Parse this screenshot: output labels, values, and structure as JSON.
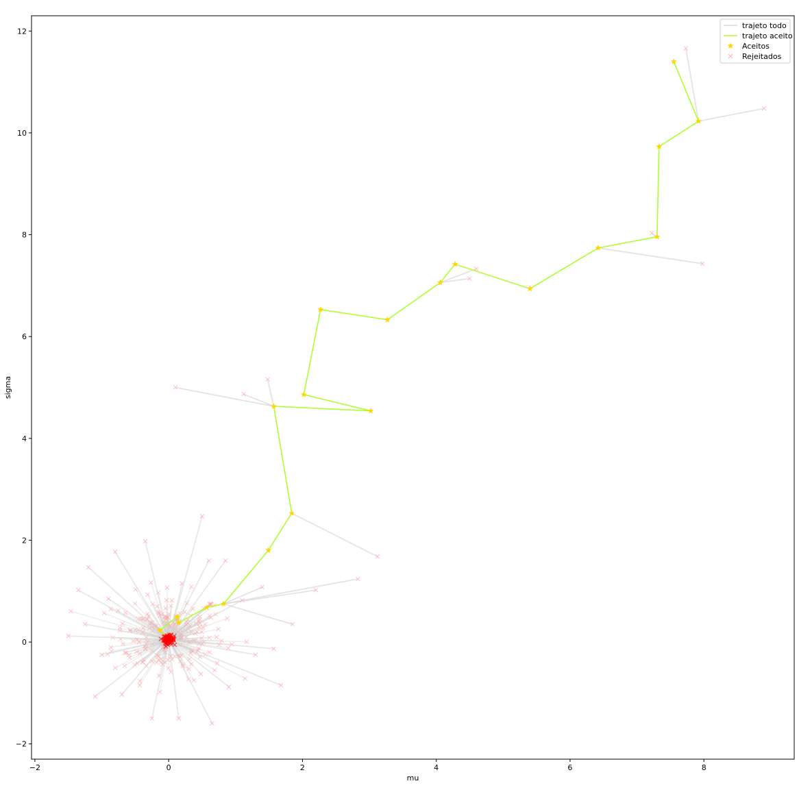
{
  "chart_data": {
    "type": "scatter",
    "xlabel": "mu",
    "ylabel": "sigma",
    "xlim": [
      -2.05,
      9.35
    ],
    "ylim": [
      -2.3,
      12.3
    ],
    "xticks": [
      -2,
      0,
      2,
      4,
      6,
      8
    ],
    "yticks": [
      -2,
      0,
      2,
      4,
      6,
      8,
      10,
      12
    ],
    "grid": false,
    "legend_position": "top-right",
    "legend": [
      {
        "label": "trajeto todo",
        "color": "#d9d9d9",
        "kind": "line"
      },
      {
        "label": "trajeto aceito",
        "color": "#adff2f",
        "kind": "line"
      },
      {
        "label": "Aceitos",
        "color": "#ffd700",
        "kind": "star"
      },
      {
        "label": "Rejeitados",
        "color": "#ffb0b0",
        "kind": "x"
      }
    ],
    "accepted_path": {
      "name": "trajeto aceito",
      "color": "#adff2f",
      "x": [
        7.55,
        7.92,
        7.33,
        7.3,
        6.42,
        5.4,
        4.28,
        4.06,
        3.27,
        2.27,
        2.02,
        3.02,
        1.57,
        1.84,
        1.49,
        0.82,
        0.57,
        0.15,
        0.13,
        -0.13,
        0.0
      ],
      "y": [
        11.4,
        10.23,
        9.73,
        7.96,
        7.74,
        6.94,
        7.42,
        7.06,
        6.33,
        6.53,
        4.86,
        4.54,
        4.63,
        2.53,
        1.8,
        0.75,
        0.68,
        0.38,
        0.5,
        0.23,
        0.05
      ]
    },
    "accepted_points": {
      "name": "Aceitos",
      "color": "#ffd700",
      "x": [
        7.55,
        7.92,
        7.33,
        7.3,
        6.42,
        5.4,
        4.28,
        4.06,
        3.27,
        2.27,
        2.02,
        3.02,
        1.57,
        1.84,
        1.49,
        0.82,
        0.57,
        0.15,
        0.13,
        -0.13
      ],
      "y": [
        11.4,
        10.23,
        9.73,
        7.96,
        7.74,
        6.94,
        7.42,
        7.06,
        6.33,
        6.53,
        4.86,
        4.54,
        4.63,
        2.53,
        1.8,
        0.75,
        0.68,
        0.38,
        0.5,
        0.23
      ]
    },
    "all_path": {
      "name": "trajeto todo",
      "color": "#d9d9d9",
      "segments": [
        [
          7.92,
          10.23,
          7.73,
          11.66
        ],
        [
          7.92,
          10.23,
          8.9,
          10.48
        ],
        [
          7.3,
          7.96,
          7.22,
          8.03
        ],
        [
          6.42,
          7.74,
          7.98,
          7.43
        ],
        [
          4.06,
          7.06,
          4.6,
          7.33
        ],
        [
          4.06,
          7.06,
          4.5,
          7.14
        ],
        [
          1.57,
          4.63,
          1.48,
          5.16
        ],
        [
          1.57,
          4.63,
          0.1,
          5.0
        ],
        [
          1.57,
          4.63,
          1.12,
          4.87
        ],
        [
          1.84,
          2.53,
          3.12,
          1.68
        ],
        [
          0.82,
          0.75,
          2.83,
          1.24
        ],
        [
          0.82,
          0.75,
          2.2,
          1.02
        ],
        [
          0.82,
          0.75,
          1.85,
          0.35
        ],
        [
          0.82,
          0.75,
          1.4,
          1.08
        ]
      ]
    },
    "rejected_points": {
      "name": "Rejeitados",
      "color": "#ffb0b0",
      "x": [
        7.73,
        8.9,
        7.22,
        7.98,
        4.6,
        4.5,
        1.48,
        0.1,
        1.12,
        3.12,
        2.83,
        2.2,
        1.85,
        1.4,
        0.5,
        -0.35,
        -0.8,
        -1.35,
        -1.2,
        -1.5,
        -1.0,
        -0.7,
        -1.1,
        -0.25,
        0.15,
        0.65,
        0.9,
        1.3,
        1.57,
        1.68,
        0.85,
        0.2,
        -0.9,
        -1.25,
        0.6,
        1.1
      ],
      "y": [
        11.66,
        10.48,
        8.03,
        7.43,
        7.33,
        7.14,
        5.16,
        5.0,
        4.87,
        1.68,
        1.24,
        1.02,
        0.35,
        1.08,
        2.47,
        1.98,
        1.77,
        1.02,
        1.47,
        0.12,
        -0.25,
        -1.03,
        -1.07,
        -1.5,
        -1.5,
        -1.6,
        -0.88,
        -0.25,
        -0.13,
        -0.85,
        1.6,
        1.15,
        0.85,
        0.35,
        1.6,
        0.82
      ]
    }
  }
}
